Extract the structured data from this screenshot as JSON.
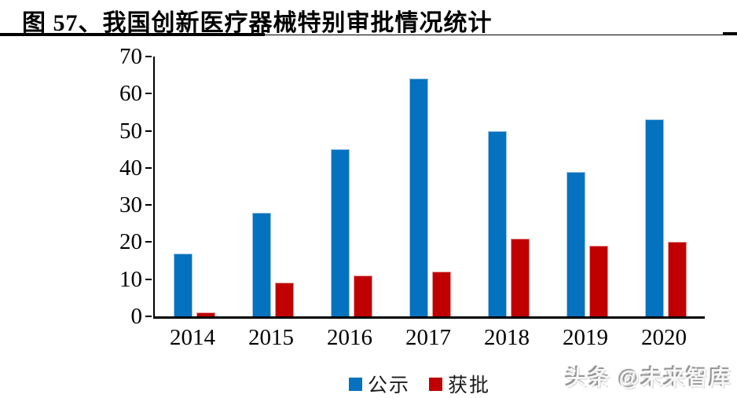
{
  "header": {
    "title": "图 57、我国创新医疗器械特别审批情况统计"
  },
  "chart_data": {
    "type": "bar",
    "title": "图 57、我国创新医疗器械特别审批情况统计",
    "categories": [
      "2014",
      "2015",
      "2016",
      "2017",
      "2018",
      "2019",
      "2020"
    ],
    "series": [
      {
        "name": "公示",
        "color": "#0572BF",
        "edge_color": "#9dc3e6",
        "values": [
          17,
          28,
          45,
          64,
          50,
          39,
          53
        ]
      },
      {
        "name": "获批",
        "color": "#C00000",
        "edge_color": "#e59797",
        "values": [
          1,
          9,
          11,
          12,
          21,
          19,
          20
        ]
      }
    ],
    "xlabel": "",
    "ylabel": "",
    "ylim": [
      0,
      70
    ],
    "yticks": [
      0,
      10,
      20,
      30,
      40,
      50,
      60,
      70
    ],
    "grid": false,
    "legend_position": "bottom",
    "axis_color": "#000000"
  },
  "watermark": {
    "text": "头条 @未来智库"
  }
}
